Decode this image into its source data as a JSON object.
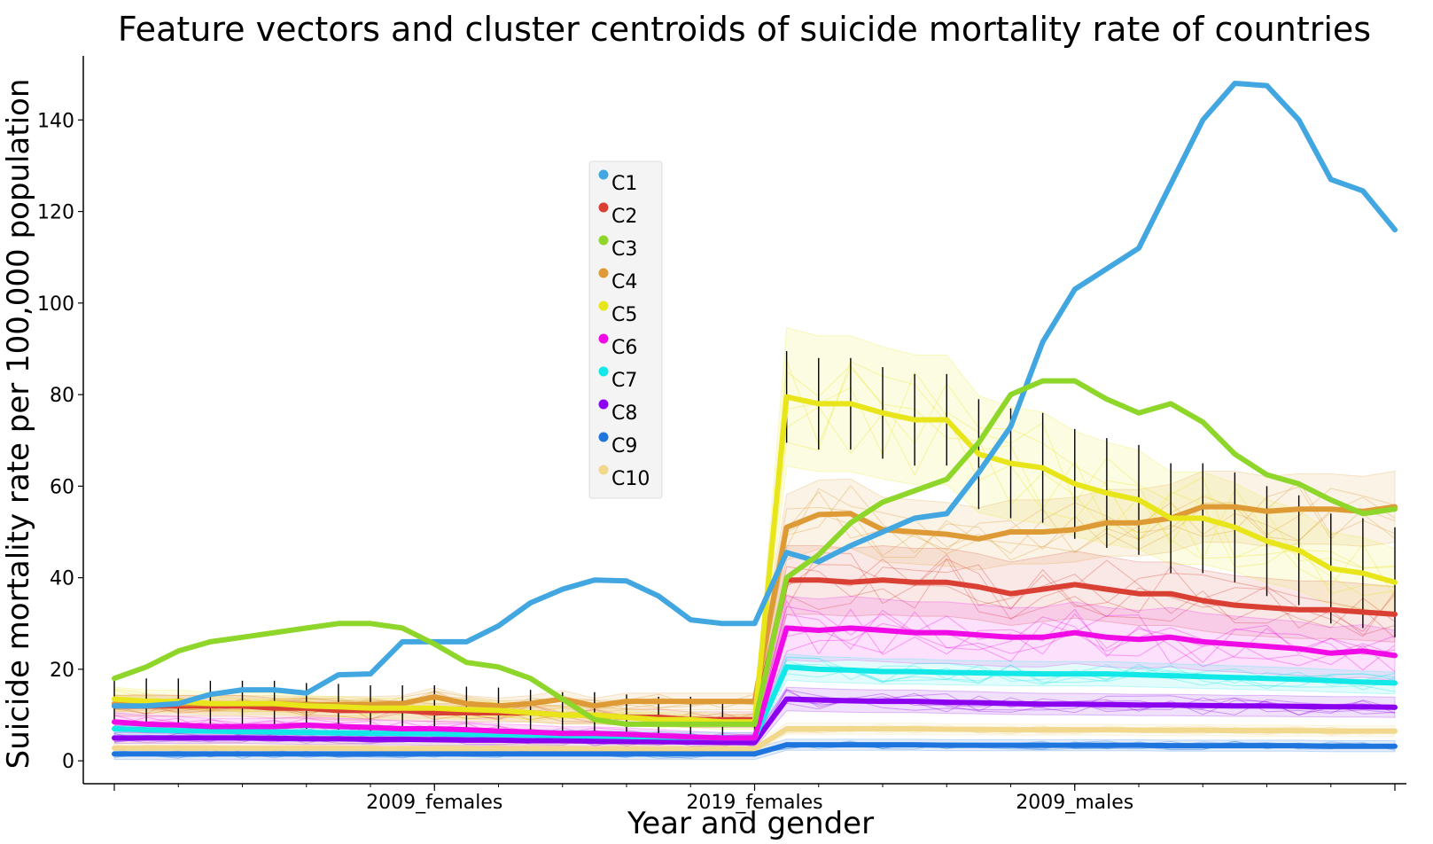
{
  "chart_data": {
    "type": "line",
    "title": "Feature vectors and cluster centroids of suicide mortality rate of countries",
    "xlabel": "Year and gender",
    "ylabel": "Suicide mortality rate per 100,000 population",
    "x_tick_labels": [
      "2009_females",
      "2019_females",
      "2009_males"
    ],
    "ylim": [
      -5,
      154
    ],
    "y_ticks": [
      0,
      20,
      40,
      60,
      80,
      100,
      120,
      140
    ],
    "grid": false,
    "legend_position": "upper-center",
    "series": [
      {
        "name": "C1",
        "color": "#42a7e0",
        "values": [
          12,
          12,
          12.5,
          14.5,
          15.5,
          15.5,
          14.8,
          18.8,
          19,
          26,
          26,
          26,
          29.5,
          34.5,
          37.5,
          39.5,
          39.3,
          36,
          30.8,
          30,
          30,
          45.5,
          43.5,
          47,
          50,
          53,
          54,
          63,
          73,
          91.5,
          103,
          107.5,
          112,
          126,
          140,
          148,
          147.5,
          140,
          127,
          124.5,
          116
        ]
      },
      {
        "name": "C2",
        "color": "#d94033",
        "values": [
          12,
          12,
          12,
          12,
          12,
          11.5,
          11.5,
          11,
          11,
          11,
          10.5,
          10.5,
          10.5,
          10.5,
          10,
          10,
          9.5,
          9.5,
          9,
          9,
          9,
          39.5,
          39.5,
          39,
          39.5,
          39,
          39,
          38,
          36.5,
          37.5,
          38.5,
          37.5,
          36.5,
          36.5,
          35,
          34,
          33.5,
          33,
          33,
          32.5,
          32
        ]
      },
      {
        "name": "C3",
        "color": "#8fd62b",
        "values": [
          18,
          20.5,
          24,
          26,
          27,
          28,
          29,
          30,
          30,
          29,
          25.5,
          21.5,
          20.5,
          18,
          13.5,
          9,
          8,
          8,
          8,
          8,
          8,
          40,
          45,
          52,
          56.5,
          59,
          61.5,
          69.5,
          80,
          83,
          83,
          79,
          76,
          78,
          74,
          67,
          62.5,
          60.5,
          57,
          54,
          55
        ]
      },
      {
        "name": "C4",
        "color": "#de9a35",
        "values": [
          12.5,
          12.8,
          12.5,
          12.5,
          12.5,
          12.5,
          12.3,
          12.3,
          12.3,
          12.5,
          14,
          12.5,
          12,
          12.5,
          13.5,
          12,
          13,
          13,
          13,
          13,
          13,
          51,
          53.8,
          54,
          50.5,
          50,
          49.5,
          48.5,
          50,
          50,
          50.5,
          52,
          52,
          53,
          55.5,
          55.5,
          54.5,
          55,
          55,
          54.5,
          55.5
        ]
      },
      {
        "name": "C5",
        "color": "#e8e61a",
        "values": [
          13.5,
          13,
          13,
          12.5,
          12.5,
          12.5,
          12,
          11.8,
          11.5,
          11.5,
          11.5,
          11.2,
          11,
          10.5,
          10,
          10,
          9.5,
          9,
          9,
          8.5,
          8.5,
          79.5,
          78,
          78,
          76,
          74.5,
          74.5,
          67,
          65,
          64,
          60.5,
          58.5,
          57,
          53,
          53,
          51,
          48,
          46,
          42,
          41,
          39
        ]
      },
      {
        "name": "C6",
        "color": "#f00ae6",
        "values": [
          8.5,
          8,
          7.8,
          7.5,
          7.5,
          7.5,
          7.8,
          7.5,
          7.3,
          7,
          7,
          6.8,
          6.5,
          6.3,
          6,
          6,
          5.8,
          5.5,
          5.2,
          5,
          5,
          29,
          28.5,
          29,
          28.5,
          28,
          28,
          27.5,
          27,
          27,
          28,
          27,
          26.5,
          27,
          26,
          25.5,
          25,
          24.5,
          23.5,
          24,
          23
        ]
      },
      {
        "name": "C7",
        "color": "#12e8e8",
        "values": [
          7,
          6.8,
          6.6,
          6.5,
          6.4,
          6.3,
          6.2,
          6.1,
          6,
          6,
          5.9,
          5.8,
          5.7,
          5.6,
          5.5,
          5.4,
          5.3,
          5.2,
          5.1,
          5,
          5,
          20.5,
          20,
          19.8,
          19.5,
          19.5,
          19.3,
          19.2,
          19.1,
          19,
          19,
          19,
          18.8,
          18.6,
          18.4,
          18.2,
          18,
          17.8,
          17.5,
          17.2,
          17
        ]
      },
      {
        "name": "C8",
        "color": "#8c00f0",
        "values": [
          5,
          5,
          5,
          5,
          5,
          4.9,
          4.8,
          4.8,
          4.7,
          4.7,
          4.6,
          4.5,
          4.5,
          4.4,
          4.4,
          4.3,
          4.2,
          4.2,
          4.1,
          4,
          4,
          13.5,
          13.3,
          13.1,
          13,
          13,
          12.8,
          12.7,
          12.5,
          12.4,
          12.4,
          12.3,
          12.2,
          12.2,
          12.1,
          12,
          12,
          11.9,
          11.8,
          11.8,
          11.7
        ]
      },
      {
        "name": "C9",
        "color": "#1f75de",
        "values": [
          1.5,
          1.5,
          1.5,
          1.5,
          1.5,
          1.5,
          1.5,
          1.5,
          1.5,
          1.5,
          1.5,
          1.5,
          1.5,
          1.5,
          1.5,
          1.5,
          1.5,
          1.5,
          1.5,
          1.5,
          1.5,
          3.5,
          3.5,
          3.5,
          3.5,
          3.5,
          3.4,
          3.4,
          3.4,
          3.4,
          3.4,
          3.4,
          3.4,
          3.3,
          3.3,
          3.3,
          3.3,
          3.3,
          3.2,
          3.2,
          3.2
        ]
      },
      {
        "name": "C10",
        "color": "#f2d88c",
        "values": [
          2.8,
          2.8,
          2.8,
          2.8,
          2.8,
          2.8,
          2.8,
          2.8,
          2.7,
          2.7,
          2.7,
          2.7,
          2.7,
          2.7,
          2.6,
          2.6,
          2.6,
          2.6,
          2.6,
          2.6,
          2.6,
          7,
          7,
          7,
          7,
          7,
          6.9,
          6.9,
          6.8,
          6.8,
          6.8,
          6.8,
          6.7,
          6.7,
          6.7,
          6.6,
          6.6,
          6.6,
          6.5,
          6.5,
          6.5
        ]
      }
    ]
  }
}
